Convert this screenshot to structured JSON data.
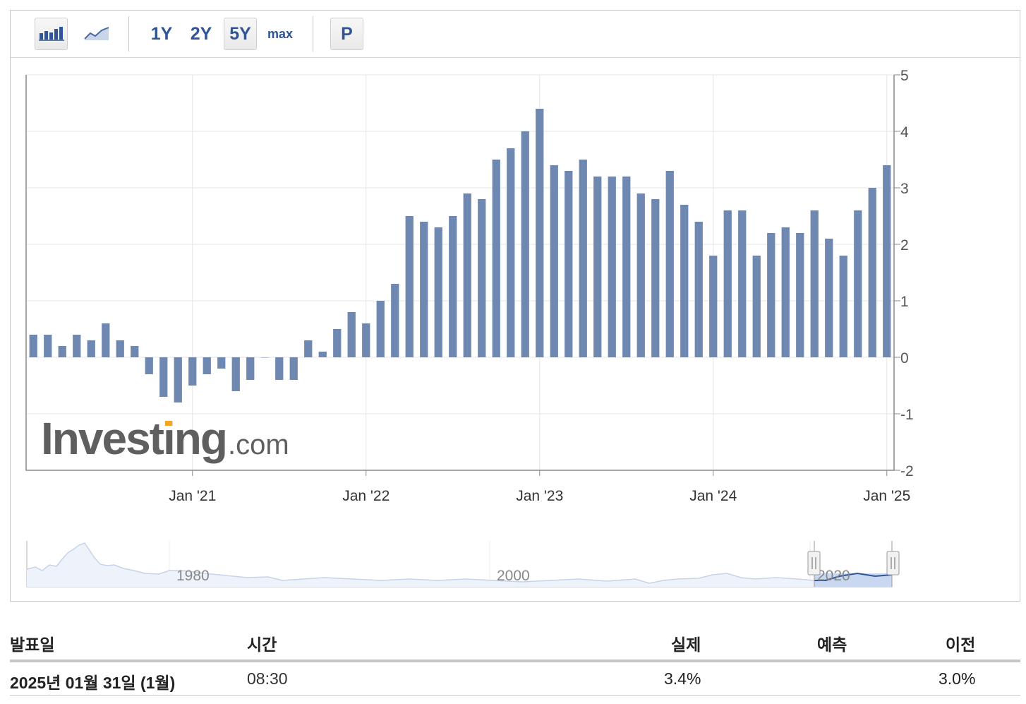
{
  "toolbar": {
    "range_buttons": [
      "1Y",
      "2Y",
      "5Y",
      "max"
    ],
    "active_range": "5Y",
    "p_button": "P",
    "bar_chart_icon": "bar-chart-icon",
    "line_chart_icon": "line-chart-icon"
  },
  "watermark": "Investing.com",
  "navigator": {
    "year_labels": [
      "1980",
      "2000",
      "2020"
    ]
  },
  "colors": {
    "bar": "#6f88b1",
    "accent": "#2f5597",
    "logo_orange": "#f4a623"
  },
  "chart_data": {
    "type": "bar",
    "x_tick_labels": [
      "Jan '21",
      "Jan '22",
      "Jan '23",
      "Jan '24",
      "Jan '25"
    ],
    "y_ticks": [
      5,
      4,
      3,
      2,
      1,
      0,
      -1,
      -2
    ],
    "ylim": [
      -2,
      5
    ],
    "y_axis_side": "right",
    "grid": true,
    "series": [
      {
        "values": [
          0.4,
          0.4,
          0.2,
          0.4,
          0.3,
          0.6,
          0.3,
          0.2,
          -0.3,
          -0.7,
          -0.8,
          -0.5,
          -0.3,
          -0.2,
          -0.6,
          -0.4,
          0,
          -0.4,
          -0.4,
          0.3,
          0.1,
          0.5,
          0.8,
          0.6,
          1.0,
          1.3,
          2.5,
          2.4,
          2.3,
          2.5,
          2.9,
          2.8,
          3.5,
          3.7,
          4.0,
          4.4,
          3.4,
          3.3,
          3.5,
          3.2,
          3.2,
          3.2,
          2.9,
          2.8,
          3.3,
          2.7,
          2.4,
          1.8,
          2.6,
          2.6,
          1.8,
          2.2,
          2.3,
          2.2,
          2.6,
          2.1,
          1.8,
          2.6,
          3.0,
          3.4
        ]
      }
    ]
  },
  "table": {
    "headers": {
      "release_date": "발표일",
      "time": "시간",
      "actual": "실제",
      "forecast": "예측",
      "previous": "이전"
    },
    "rows": [
      {
        "release_date": "2025년 01월 31일 (1월)",
        "time": "08:30",
        "actual": "3.4%",
        "forecast": "",
        "previous": "3.0%"
      }
    ]
  }
}
